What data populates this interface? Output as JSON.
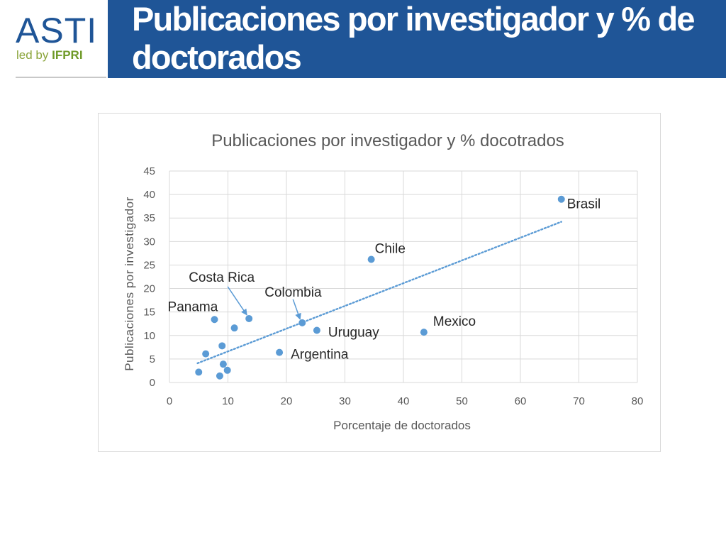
{
  "logo": {
    "name": "ASTI",
    "sub_prefix": "led by ",
    "sub_strong": "IFPRI"
  },
  "header": {
    "title": "Publicaciones por investigador y % de doctorados"
  },
  "colors": {
    "header_bg": "#1f5597",
    "marker": "#5b9bd5",
    "trend": "#5b9bd5",
    "grid": "#d9d9d9"
  },
  "chart_data": {
    "type": "scatter",
    "title": "Publicaciones por investigador y % docotrados",
    "xlabel": "Porcentaje de doctorados",
    "ylabel": "Publicaciones por investigador",
    "xlim": [
      0,
      80
    ],
    "ylim": [
      0,
      45
    ],
    "xticks": [
      0,
      10,
      20,
      30,
      40,
      50,
      60,
      70,
      80
    ],
    "yticks": [
      0,
      5,
      10,
      15,
      20,
      25,
      30,
      35,
      40,
      45
    ],
    "grid": true,
    "legend": "none",
    "points": [
      {
        "label": "Brasil",
        "x": 67,
        "y": 39
      },
      {
        "label": "Chile",
        "x": 34.5,
        "y": 26.2
      },
      {
        "label": "Mexico",
        "x": 43.5,
        "y": 10.7
      },
      {
        "label": "Uruguay",
        "x": 25.2,
        "y": 11.1
      },
      {
        "label": "Argentina",
        "x": 18.8,
        "y": 6.4
      },
      {
        "label": "Colombia",
        "x": 22.7,
        "y": 12.7
      },
      {
        "label": "Costa Rica",
        "x": 13.6,
        "y": 13.6
      },
      {
        "label": "Panama",
        "x": 7.7,
        "y": 13.4
      },
      {
        "label": "",
        "x": 11.1,
        "y": 11.6
      },
      {
        "label": "",
        "x": 9.0,
        "y": 7.8
      },
      {
        "label": "",
        "x": 6.2,
        "y": 6.1
      },
      {
        "label": "",
        "x": 9.2,
        "y": 3.9
      },
      {
        "label": "",
        "x": 9.9,
        "y": 2.6
      },
      {
        "label": "",
        "x": 5.0,
        "y": 2.2
      },
      {
        "label": "",
        "x": 8.6,
        "y": 1.4
      }
    ],
    "trendline": {
      "type": "linear",
      "style": "dotted",
      "x": [
        4.8,
        67
      ],
      "y": [
        4.1,
        34.2
      ]
    }
  }
}
